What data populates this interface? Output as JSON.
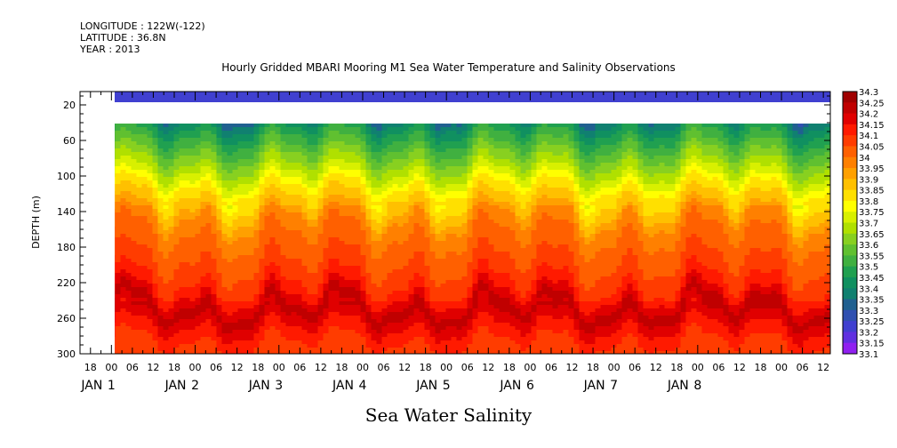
{
  "header": {
    "longitude": "LONGITUDE : 122W(-122)",
    "latitude": "LATITUDE : 36.8N",
    "year": "YEAR : 2013"
  },
  "chart_data": {
    "type": "heatmap",
    "title": "Hourly Gridded MBARI Mooring M1 Sea Water Temperature and Salinity Observations",
    "xlabel": "Sea Water Salinity",
    "ylabel": "DEPTH (m)",
    "y_axis": {
      "range": [
        5,
        300
      ],
      "reversed": true,
      "tick_labels": [
        "20",
        "60",
        "100",
        "140",
        "180",
        "220",
        "260",
        "300"
      ],
      "tick_values": [
        20,
        60,
        100,
        140,
        180,
        220,
        260,
        300
      ]
    },
    "x_axis": {
      "hour_labels": [
        "18",
        "00",
        "06",
        "12",
        "18",
        "00",
        "06",
        "12",
        "18",
        "00",
        "06",
        "12",
        "18",
        "00",
        "06",
        "12",
        "18",
        "00",
        "06",
        "12",
        "18",
        "00",
        "06",
        "12",
        "18",
        "00",
        "06",
        "12",
        "18",
        "00",
        "06",
        "12",
        "18",
        "00",
        "06",
        "12"
      ],
      "hour_offsets": [
        -6,
        0,
        6,
        12,
        18,
        24,
        30,
        36,
        42,
        48,
        54,
        60,
        66,
        72,
        78,
        84,
        90,
        96,
        102,
        108,
        114,
        120,
        126,
        132,
        138,
        144,
        150,
        156,
        162,
        168,
        174,
        180,
        186,
        192,
        198,
        204
      ],
      "day_labels": [
        {
          "month": "JAN",
          "day": "1",
          "hour": 0
        },
        {
          "month": "JAN",
          "day": "2",
          "hour": 24
        },
        {
          "month": "JAN",
          "day": "3",
          "hour": 48
        },
        {
          "month": "JAN",
          "day": "4",
          "hour": 72
        },
        {
          "month": "JAN",
          "day": "5",
          "hour": 96
        },
        {
          "month": "JAN",
          "day": "6",
          "hour": 120
        },
        {
          "month": "JAN",
          "day": "7",
          "hour": 144
        },
        {
          "month": "JAN",
          "day": "8",
          "hour": 168
        }
      ],
      "data_start_hour": -2,
      "axis_range_hours": [
        -9,
        206
      ]
    },
    "colorbar": {
      "levels": [
        "34.3",
        "34.25",
        "34.2",
        "34.15",
        "34.1",
        "34.05",
        "34",
        "33.95",
        "33.9",
        "33.85",
        "33.8",
        "33.75",
        "33.7",
        "33.65",
        "33.6",
        "33.55",
        "33.5",
        "33.45",
        "33.4",
        "33.35",
        "33.3",
        "33.25",
        "33.2",
        "33.15",
        "33.1"
      ],
      "colors": [
        "#a00000",
        "#c00000",
        "#e00000",
        "#ff1a00",
        "#ff3c00",
        "#ff6000",
        "#ff8000",
        "#ffa000",
        "#ffc000",
        "#ffe000",
        "#ffff00",
        "#d8f000",
        "#b0e000",
        "#88d020",
        "#60c030",
        "#40b040",
        "#20a050",
        "#109060",
        "#108070",
        "#206090",
        "#3050b0",
        "#4040d0",
        "#6030e0",
        "#9020f0",
        "#d000ff"
      ]
    },
    "depth_profile": {
      "note_levels_from_surface": [
        {
          "depth": 10,
          "value": 33.25
        },
        {
          "depth": 40,
          "value": 33.45
        },
        {
          "depth": 60,
          "value": 33.55
        },
        {
          "depth": 80,
          "value": 33.65
        },
        {
          "depth": 100,
          "value": 33.75
        },
        {
          "depth": 115,
          "value": 33.85
        },
        {
          "depth": 130,
          "value": 33.9
        },
        {
          "depth": 150,
          "value": 34.0
        },
        {
          "depth": 180,
          "value": 34.05
        },
        {
          "depth": 210,
          "value": 34.1
        },
        {
          "depth": 230,
          "value": 34.15
        },
        {
          "depth": 250,
          "value": 34.25
        },
        {
          "depth": 275,
          "value": 34.15
        },
        {
          "depth": 295,
          "value": 34.1
        }
      ],
      "missing_depth_range": [
        13,
        38
      ]
    },
    "grid": false,
    "legend": "right"
  }
}
